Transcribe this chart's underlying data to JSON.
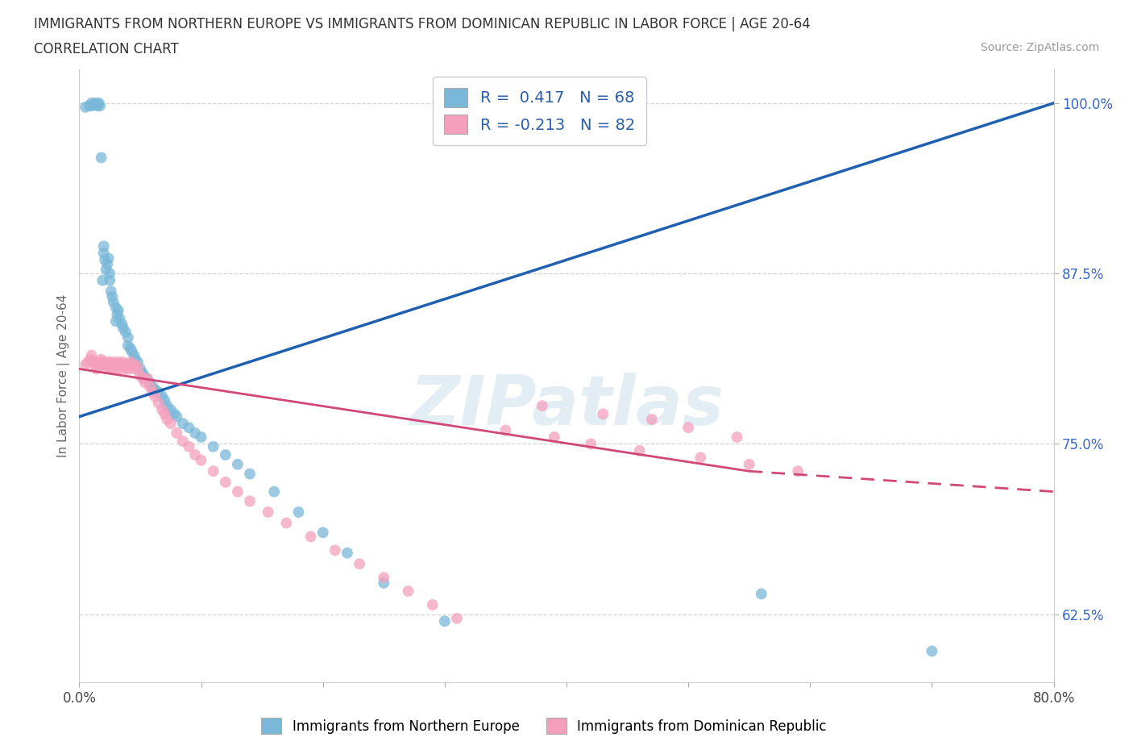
{
  "title_line1": "IMMIGRANTS FROM NORTHERN EUROPE VS IMMIGRANTS FROM DOMINICAN REPUBLIC IN LABOR FORCE | AGE 20-64",
  "title_line2": "CORRELATION CHART",
  "source_text": "Source: ZipAtlas.com",
  "ylabel": "In Labor Force | Age 20-64",
  "xlim": [
    0.0,
    0.8
  ],
  "ylim": [
    0.575,
    1.025
  ],
  "xticks": [
    0.0,
    0.1,
    0.2,
    0.3,
    0.4,
    0.5,
    0.6,
    0.7,
    0.8
  ],
  "xticklabels": [
    "0.0%",
    "",
    "",
    "",
    "",
    "",
    "",
    "",
    "80.0%"
  ],
  "yticks": [
    0.625,
    0.75,
    0.875,
    1.0
  ],
  "yticklabels": [
    "62.5%",
    "75.0%",
    "87.5%",
    "100.0%"
  ],
  "blue_color": "#7ab8d9",
  "pink_color": "#f4a0bc",
  "blue_line_color": "#2060b0",
  "pink_line_color": "#d04878",
  "R_blue": 0.417,
  "N_blue": 68,
  "R_pink": -0.213,
  "N_pink": 82,
  "legend_label_blue": "Immigrants from Northern Europe",
  "legend_label_pink": "Immigrants from Dominican Republic",
  "watermark": "ZIPatlas",
  "bg_color": "#ffffff",
  "grid_color": "#c8c8c8",
  "blue_scatter_x": [
    0.005,
    0.008,
    0.01,
    0.01,
    0.012,
    0.013,
    0.015,
    0.015,
    0.016,
    0.017,
    0.018,
    0.019,
    0.02,
    0.02,
    0.021,
    0.022,
    0.023,
    0.024,
    0.025,
    0.025,
    0.026,
    0.027,
    0.028,
    0.03,
    0.03,
    0.031,
    0.032,
    0.033,
    0.035,
    0.036,
    0.038,
    0.04,
    0.04,
    0.042,
    0.043,
    0.045,
    0.046,
    0.048,
    0.05,
    0.052,
    0.053,
    0.055,
    0.058,
    0.06,
    0.062,
    0.065,
    0.068,
    0.07,
    0.072,
    0.075,
    0.078,
    0.08,
    0.085,
    0.09,
    0.095,
    0.1,
    0.11,
    0.12,
    0.13,
    0.14,
    0.16,
    0.18,
    0.2,
    0.22,
    0.25,
    0.3,
    0.56,
    0.7
  ],
  "blue_scatter_y": [
    0.997,
    0.998,
    1.0,
    0.998,
    0.999,
    1.0,
    0.998,
    0.999,
    1.0,
    0.998,
    0.96,
    0.87,
    0.89,
    0.895,
    0.885,
    0.878,
    0.882,
    0.886,
    0.875,
    0.87,
    0.862,
    0.858,
    0.854,
    0.84,
    0.85,
    0.845,
    0.848,
    0.842,
    0.838,
    0.835,
    0.832,
    0.828,
    0.822,
    0.82,
    0.818,
    0.815,
    0.812,
    0.81,
    0.805,
    0.802,
    0.8,
    0.798,
    0.795,
    0.792,
    0.79,
    0.788,
    0.785,
    0.782,
    0.778,
    0.775,
    0.772,
    0.77,
    0.765,
    0.762,
    0.758,
    0.755,
    0.748,
    0.742,
    0.735,
    0.728,
    0.715,
    0.7,
    0.685,
    0.67,
    0.648,
    0.62,
    0.64,
    0.598
  ],
  "pink_scatter_x": [
    0.005,
    0.007,
    0.009,
    0.01,
    0.012,
    0.013,
    0.014,
    0.015,
    0.016,
    0.017,
    0.018,
    0.019,
    0.02,
    0.021,
    0.022,
    0.023,
    0.024,
    0.025,
    0.025,
    0.026,
    0.027,
    0.028,
    0.029,
    0.03,
    0.031,
    0.032,
    0.033,
    0.034,
    0.035,
    0.036,
    0.037,
    0.038,
    0.039,
    0.04,
    0.041,
    0.042,
    0.043,
    0.045,
    0.046,
    0.048,
    0.05,
    0.052,
    0.054,
    0.056,
    0.058,
    0.06,
    0.062,
    0.065,
    0.068,
    0.07,
    0.072,
    0.075,
    0.08,
    0.085,
    0.09,
    0.095,
    0.1,
    0.11,
    0.12,
    0.13,
    0.14,
    0.155,
    0.17,
    0.19,
    0.21,
    0.23,
    0.25,
    0.27,
    0.29,
    0.31,
    0.35,
    0.39,
    0.42,
    0.46,
    0.51,
    0.55,
    0.59,
    0.38,
    0.43,
    0.47,
    0.5,
    0.54
  ],
  "pink_scatter_y": [
    0.808,
    0.81,
    0.812,
    0.815,
    0.81,
    0.808,
    0.805,
    0.81,
    0.808,
    0.81,
    0.812,
    0.808,
    0.81,
    0.808,
    0.805,
    0.808,
    0.81,
    0.808,
    0.81,
    0.805,
    0.808,
    0.81,
    0.808,
    0.805,
    0.808,
    0.81,
    0.808,
    0.805,
    0.808,
    0.81,
    0.808,
    0.805,
    0.808,
    0.805,
    0.808,
    0.81,
    0.808,
    0.805,
    0.808,
    0.805,
    0.8,
    0.798,
    0.795,
    0.798,
    0.792,
    0.788,
    0.785,
    0.78,
    0.775,
    0.772,
    0.768,
    0.765,
    0.758,
    0.752,
    0.748,
    0.742,
    0.738,
    0.73,
    0.722,
    0.715,
    0.708,
    0.7,
    0.692,
    0.682,
    0.672,
    0.662,
    0.652,
    0.642,
    0.632,
    0.622,
    0.76,
    0.755,
    0.75,
    0.745,
    0.74,
    0.735,
    0.73,
    0.778,
    0.772,
    0.768,
    0.762,
    0.755
  ]
}
